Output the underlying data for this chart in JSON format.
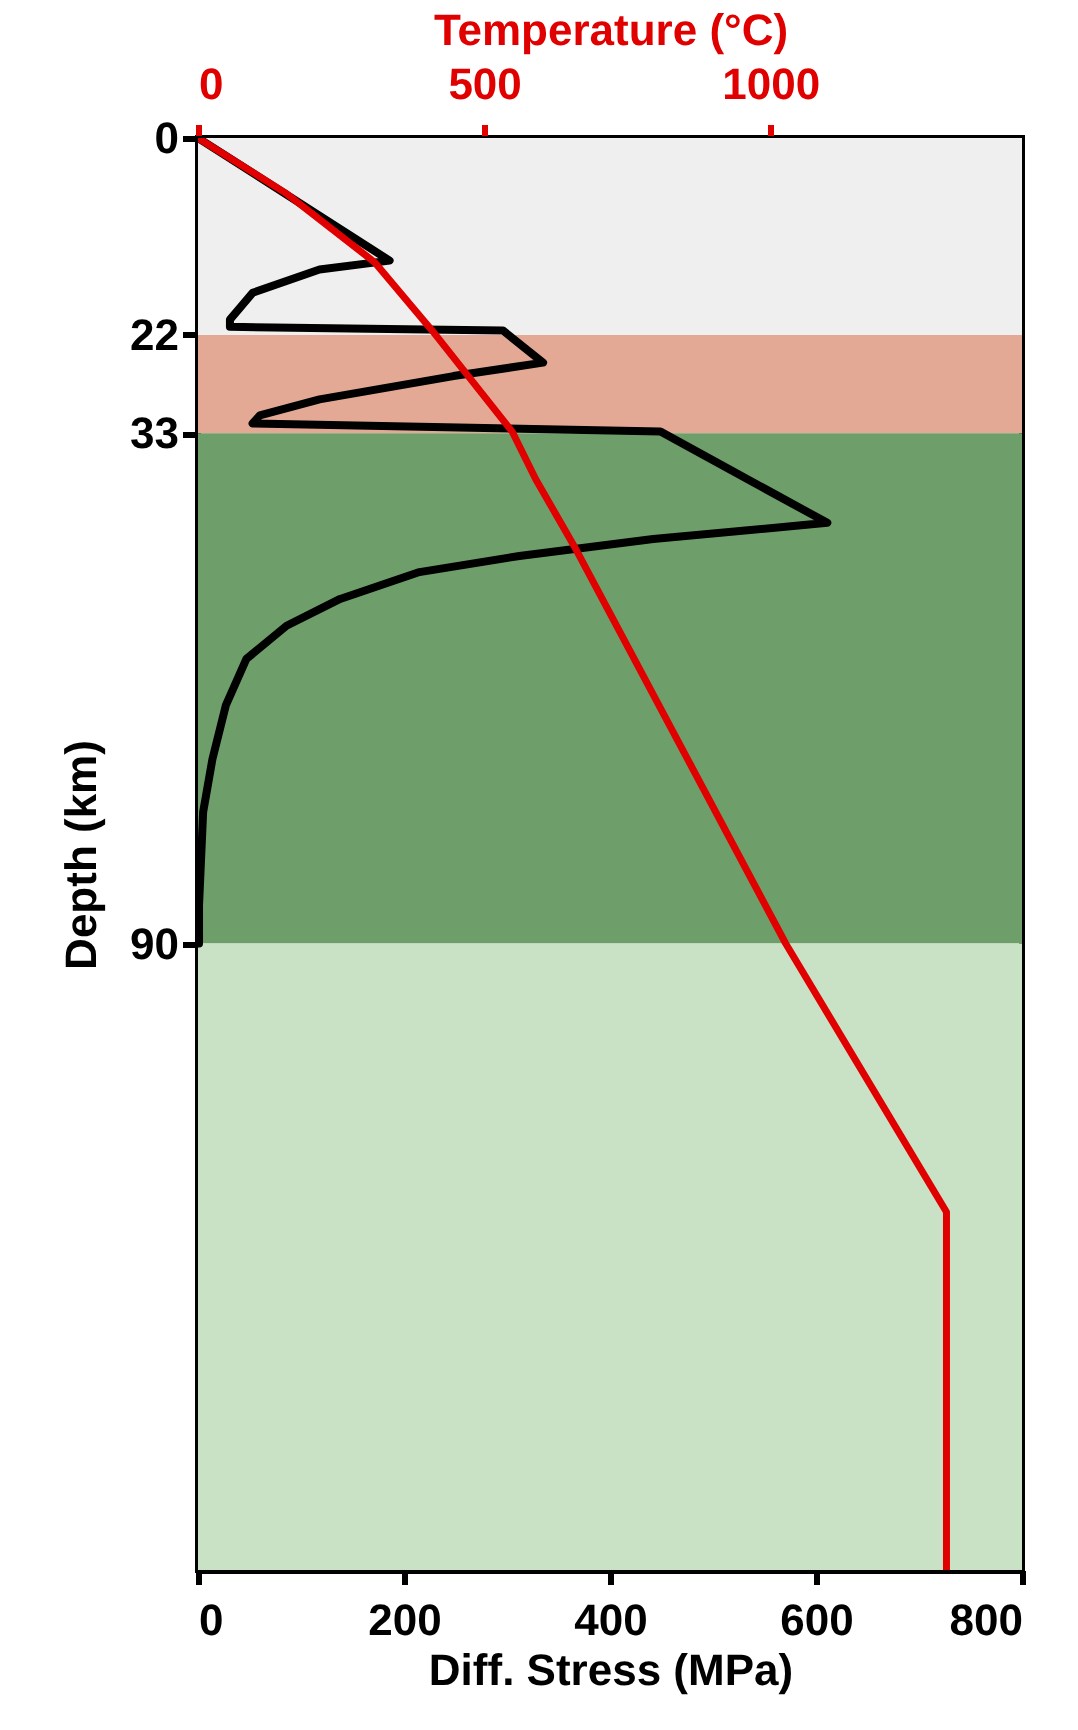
{
  "chart_data": {
    "type": "line",
    "xlabel": "Diff. Stress (MPa)",
    "x2label": "Temperature (°C)",
    "ylabel": "Depth (km)",
    "xlim": [
      0,
      800
    ],
    "xticks": [
      0,
      200,
      400,
      600,
      800
    ],
    "x2lim": [
      0,
      1440
    ],
    "x2ticks": [
      0,
      500,
      1000
    ],
    "ylim": [
      160,
      0
    ],
    "yticks": [
      0,
      22,
      33,
      90
    ],
    "bands": [
      {
        "axis": "y",
        "from": 0,
        "to": 22,
        "color": "#efefef"
      },
      {
        "axis": "y",
        "from": 22,
        "to": 33,
        "color": "#e3a994"
      },
      {
        "axis": "y",
        "from": 33,
        "to": 90,
        "color": "#6e9f6a"
      },
      {
        "axis": "y",
        "from": 90,
        "to": 160,
        "color": "#c9e2c5"
      }
    ],
    "series": [
      {
        "color": "#000000",
        "x": [
          0,
          186,
          118,
          53,
          31,
          31,
          296,
          335,
          248,
          118,
          60,
          53,
          449,
          611,
          442,
          312,
          215,
          138,
          86,
          47,
          27,
          14,
          5,
          1,
          1
        ],
        "values": [
          0,
          13.7,
          14.7,
          17.3,
          20.3,
          21.1,
          21.5,
          25.1,
          26.6,
          29.2,
          31.0,
          31.9,
          32.8,
          43.0,
          44.8,
          46.7,
          48.5,
          51.5,
          54.5,
          58.2,
          63.4,
          69.4,
          75.3,
          85.7,
          90
        ]
      },
      {
        "color": "#e00000",
        "axis": "x2",
        "x": [
          0,
          152,
          309,
          409,
          549,
          590,
          660,
          1027,
          1308,
          1308
        ],
        "values": [
          0,
          6.1,
          13.9,
          21.5,
          32.8,
          38.1,
          45.9,
          90,
          120,
          160
        ]
      }
    ]
  }
}
